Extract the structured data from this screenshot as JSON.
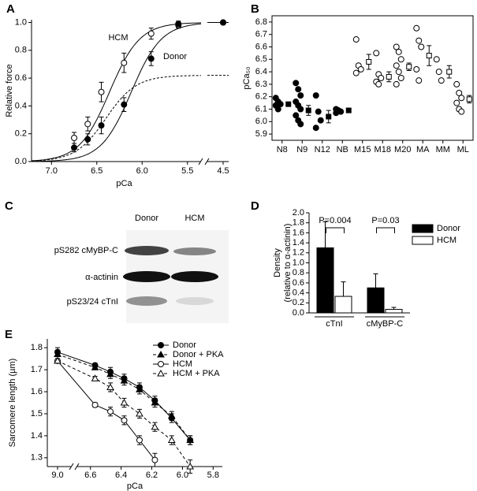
{
  "chart_data": [
    {
      "panel": "A",
      "type": "curve_fit",
      "xlabel": "pCa",
      "ylabel": "Relative force",
      "axis_break": true,
      "xlim": [
        7.22,
        5.35
      ],
      "xticks": [
        {
          "value": 7,
          "label": "7.0"
        },
        6.5,
        {
          "value": 6,
          "label": "6.0"
        },
        5.5,
        4.5
      ],
      "ylim": [
        0,
        1.02
      ],
      "yticks": [
        {
          "value": 0,
          "label": "0.0"
        },
        0.2,
        0.4,
        0.6,
        0.8,
        {
          "value": 1,
          "label": "1.0"
        }
      ],
      "series": [
        {
          "name": "HCM",
          "filled": false,
          "x": [
            6.75,
            6.6,
            6.45,
            6.2,
            5.9,
            5.6,
            4.5
          ],
          "values": [
            0.17,
            0.27,
            0.5,
            0.71,
            0.92,
            0.98,
            1.0
          ],
          "errors": [
            0.04,
            0.05,
            0.07,
            0.07,
            0.04,
            0.02,
            0.01
          ],
          "fit": {
            "pCa50": 6.36,
            "nH": 2.6,
            "max": 1.0
          }
        },
        {
          "name": "Donor",
          "filled": true,
          "x": [
            6.75,
            6.6,
            6.45,
            6.2,
            5.9,
            5.6,
            4.5
          ],
          "values": [
            0.1,
            0.16,
            0.26,
            0.41,
            0.74,
            0.99,
            1.0
          ],
          "errors": [
            0.03,
            0.04,
            0.06,
            0.05,
            0.05,
            0.02,
            0.01
          ],
          "fit": {
            "pCa50": 6.12,
            "nH": 2.6,
            "max": 1.0
          }
        }
      ],
      "dashed_fit": {
        "pCa50": 6.4,
        "nH": 2.6,
        "max": 0.62
      }
    },
    {
      "panel": "B",
      "type": "dot_plot",
      "ylabel": "pCa₅₀",
      "categories": [
        "N8",
        "N9",
        "N12",
        "NB",
        "M15",
        "M18",
        "M20",
        "MA",
        "MM",
        "ML"
      ],
      "filled": [
        true,
        true,
        true,
        true,
        false,
        false,
        false,
        false,
        false,
        false
      ],
      "ylim": [
        5.85,
        6.85
      ],
      "yticks": [
        5.9,
        {
          "value": 6,
          "label": "6.0"
        },
        6.1,
        6.2,
        6.3,
        6.4,
        6.5,
        6.6,
        6.7,
        6.8
      ],
      "points": [
        [
          6.19,
          6.16,
          6.14,
          6.13,
          6.1
        ],
        [
          6.31,
          6.26,
          6.21,
          6.16,
          6.13,
          6.1,
          6.05,
          6.01,
          5.98
        ],
        [
          6.21,
          6.08,
          6.01,
          5.95
        ],
        [
          6.1,
          6.09,
          6.08,
          6.07
        ],
        [
          6.66,
          6.45,
          6.42,
          6.39
        ],
        [
          6.55,
          6.38,
          6.35,
          6.32,
          6.3
        ],
        [
          6.6,
          6.56,
          6.5,
          6.45,
          6.4,
          6.35,
          6.3
        ],
        [
          6.75,
          6.65,
          6.6,
          6.42,
          6.33
        ],
        [
          6.5,
          6.4,
          6.33
        ],
        [
          6.3,
          6.23,
          6.19,
          6.15,
          6.1,
          6.08
        ]
      ],
      "means": [
        6.14,
        6.09,
        6.04,
        6.09,
        6.48,
        6.36,
        6.44,
        6.53,
        6.4,
        6.18
      ],
      "sems": [
        0.01,
        0.04,
        0.05,
        0.01,
        0.06,
        0.04,
        0.03,
        0.08,
        0.05,
        0.03
      ]
    },
    {
      "panel": "D",
      "type": "bar",
      "ylabel": [
        "Density",
        "(relative to α-actinin)"
      ],
      "categories": [
        "cTnI",
        "cMyBP-C"
      ],
      "annotations": [
        "P=0.004",
        "P=0.03"
      ],
      "ylim": [
        0,
        2.0
      ],
      "yticks": [
        {
          "value": 0,
          "label": "0.0"
        },
        0.2,
        0.4,
        0.6,
        0.8,
        {
          "value": 1,
          "label": "1.0"
        },
        1.2,
        1.4,
        1.6,
        1.8,
        {
          "value": 2,
          "label": "2.0"
        }
      ],
      "series": [
        {
          "name": "Donor",
          "color": "#000000",
          "values": [
            1.3,
            0.5
          ],
          "errors": [
            0.52,
            0.28
          ]
        },
        {
          "name": "HCM",
          "color": "#ffffff",
          "values": [
            0.33,
            0.07
          ],
          "errors": [
            0.29,
            0.04
          ]
        }
      ]
    },
    {
      "panel": "E",
      "type": "line",
      "xlabel": "pCa",
      "ylabel": "Sarcomere length (µm)",
      "axis_break": true,
      "xlim": [
        6.65,
        5.74
      ],
      "xticks": [
        {
          "value": 9,
          "label": "9.0"
        },
        6.6,
        6.4,
        6.2,
        {
          "value": 6,
          "label": "6.0"
        },
        5.8
      ],
      "ylim": [
        1.26,
        1.84
      ],
      "yticks": [
        1.3,
        1.4,
        1.5,
        1.6,
        1.7,
        1.8
      ],
      "x": [
        9.0,
        6.57,
        6.47,
        6.38,
        6.28,
        6.18,
        6.07,
        5.95
      ],
      "series": [
        {
          "name": "Donor",
          "marker": "circle",
          "filled": true,
          "dashed": false,
          "values": [
            1.78,
            1.72,
            1.69,
            1.66,
            1.62,
            1.56,
            1.48,
            1.38
          ],
          "errors": [
            0.02,
            0.01,
            0.02,
            0.02,
            0.02,
            0.02,
            0.02,
            0.02
          ]
        },
        {
          "name": "Donor + PKA",
          "marker": "triangle",
          "filled": true,
          "dashed": true,
          "values": [
            1.77,
            1.71,
            1.68,
            1.65,
            1.61,
            1.55,
            1.49,
            1.38
          ],
          "errors": [
            0.02,
            0.01,
            0.02,
            0.02,
            0.02,
            0.02,
            0.02,
            0.02
          ]
        },
        {
          "name": "HCM",
          "marker": "circle",
          "filled": false,
          "dashed": false,
          "values": [
            1.74,
            1.54,
            1.51,
            1.47,
            1.38,
            1.29,
            null,
            null
          ],
          "errors": [
            0.01,
            0.01,
            0.02,
            0.02,
            0.02,
            0.03,
            null,
            null
          ]
        },
        {
          "name": "HCM + PKA",
          "marker": "triangle",
          "filled": false,
          "dashed": true,
          "values": [
            1.74,
            1.66,
            1.62,
            1.55,
            1.5,
            1.44,
            1.38,
            1.26
          ],
          "errors": [
            0.01,
            0.01,
            0.02,
            0.02,
            0.02,
            0.02,
            0.02,
            0.03
          ]
        }
      ]
    }
  ],
  "blot": {
    "panel": "C",
    "columns": [
      "Donor",
      "HCM"
    ],
    "rows": [
      "pS282 cMyBP-C",
      "α-actinin",
      "pS23/24 cTnI"
    ]
  }
}
